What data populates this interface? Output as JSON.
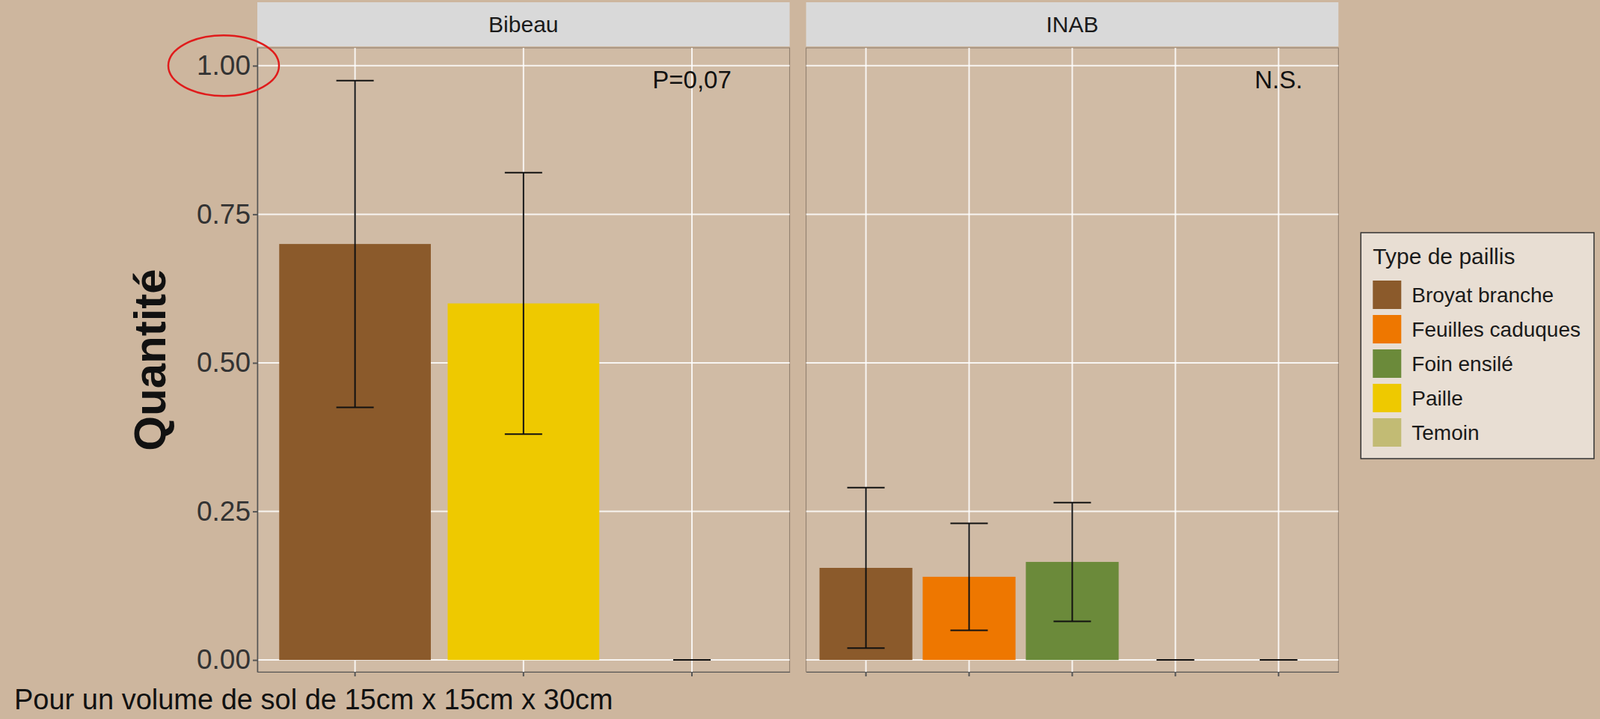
{
  "chart_data": {
    "type": "bar",
    "y_label": "Quantité",
    "ylim": [
      -0.02,
      1.03
    ],
    "yticks": [
      {
        "value": 0,
        "label": "0.00"
      },
      {
        "value": 0.25,
        "label": "0.25"
      },
      {
        "value": 0.5,
        "label": "0.50"
      },
      {
        "value": 0.75,
        "label": "0.75"
      },
      {
        "value": 1,
        "label": "1.00"
      }
    ],
    "grid": true,
    "tick_labels": "y",
    "legend": "right",
    "legend_title": "Type de paillis",
    "legend_entries": [
      {
        "name": "Broyat branche",
        "color": "#8b5a2b"
      },
      {
        "name": "Feuilles caduques",
        "color": "#ee7700"
      },
      {
        "name": "Foin ensilé",
        "color": "#6b8a3a"
      },
      {
        "name": "Paille",
        "color": "#eec900"
      },
      {
        "name": "Temoin",
        "color": "#c2bb74"
      }
    ],
    "panels": [
      {
        "title": "Bibeau",
        "annotation": "P=0,07",
        "categories": [
          null,
          null,
          null
        ],
        "values": [
          0.7,
          0.6,
          0
        ],
        "errors": [
          0.275,
          0.22,
          0
        ],
        "colors": [
          "#8b5a2b",
          "#eec900",
          "#c2bb74"
        ]
      },
      {
        "title": "INAB",
        "annotation": "N.S.",
        "categories": [
          null,
          null,
          null,
          null,
          null
        ],
        "values": [
          0.155,
          0.14,
          0.165,
          0,
          0
        ],
        "errors": [
          0.135,
          0.09,
          0.1,
          0,
          0
        ],
        "colors": [
          "#8b5a2b",
          "#ee7700",
          "#6b8a3a",
          "#eec900",
          "#c2bb74"
        ]
      }
    ],
    "note": "Pour un volume de sol de 15cm x 15cm x 30cm"
  }
}
